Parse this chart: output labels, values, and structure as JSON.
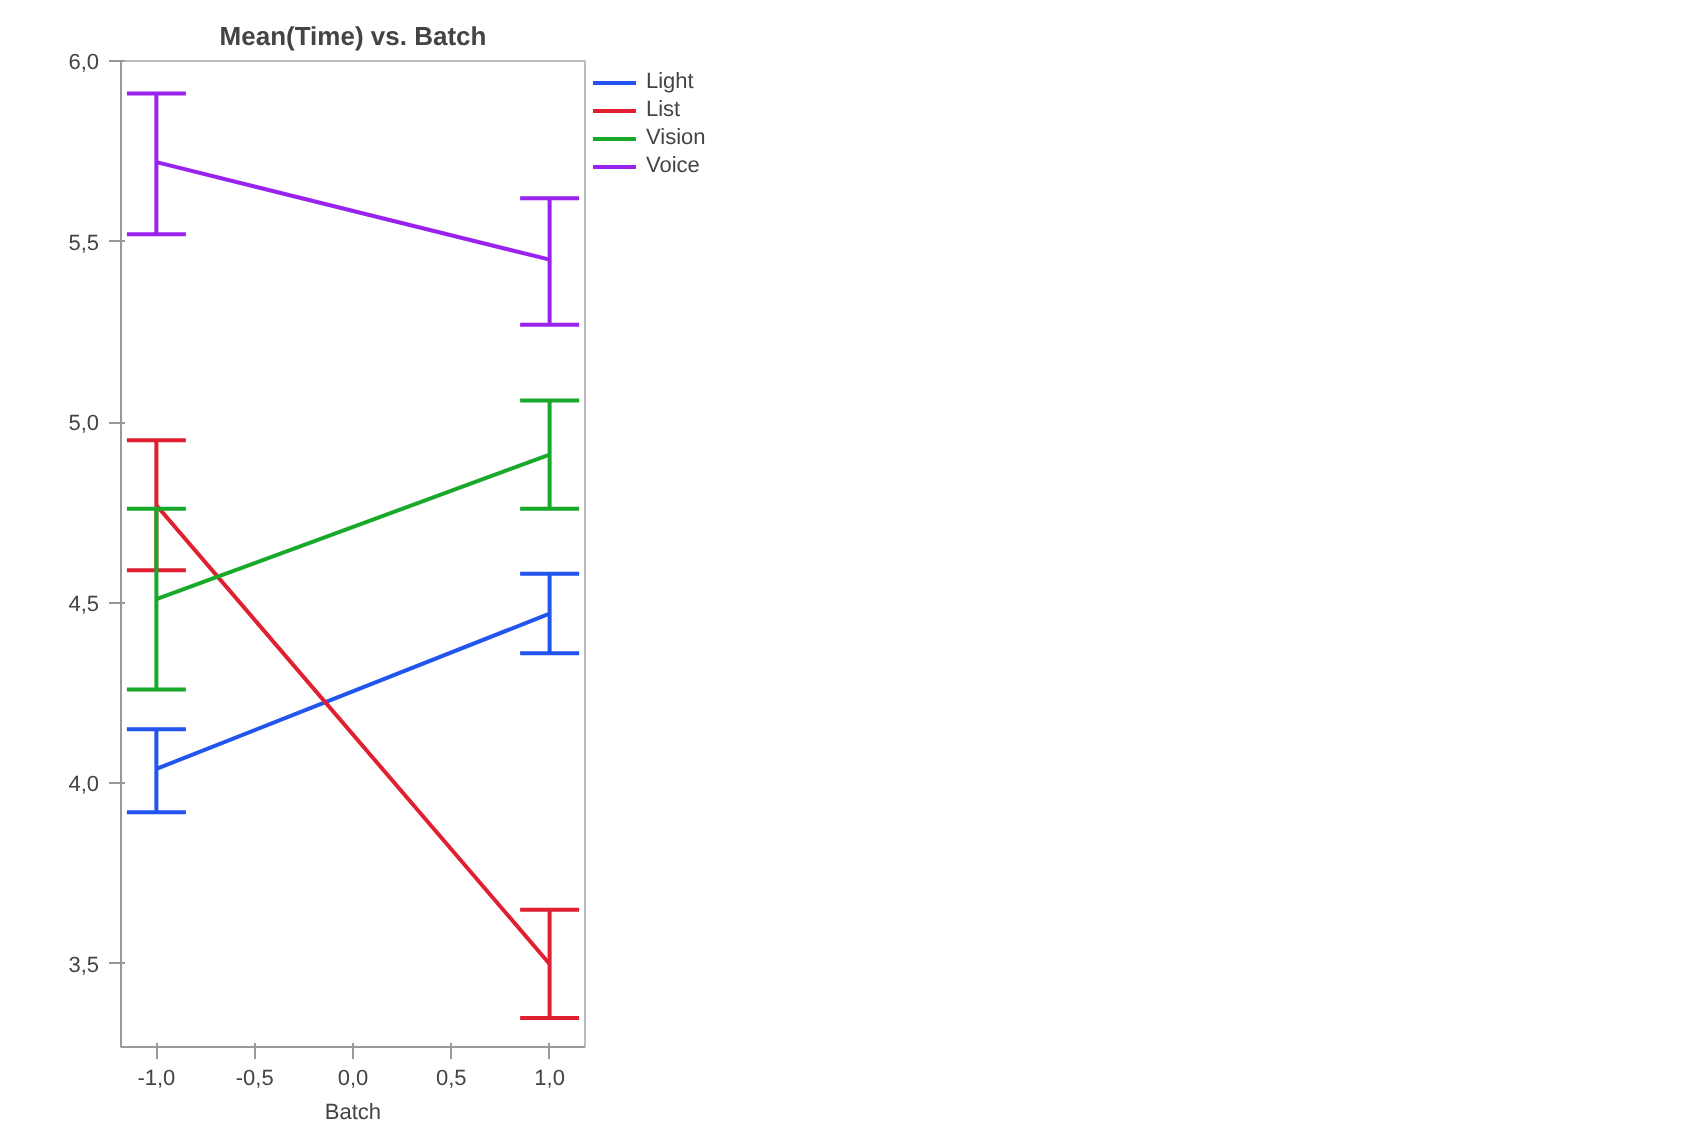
{
  "chart_data": {
    "type": "line",
    "title": "Mean(Time) vs. Batch",
    "xlabel": "Batch",
    "x": [
      -1.0,
      1.0
    ],
    "series": [
      {
        "name": "Light",
        "color": "#2255ee",
        "values": [
          4.04,
          4.47
        ],
        "errors": [
          [
            3.92,
            4.15
          ],
          [
            4.36,
            4.58
          ]
        ]
      },
      {
        "name": "List",
        "color": "#e02030",
        "values": [
          4.77,
          3.5
        ],
        "errors": [
          [
            4.59,
            4.95
          ],
          [
            3.35,
            3.65
          ]
        ]
      },
      {
        "name": "Vision",
        "color": "#18a82a",
        "values": [
          4.51,
          4.91
        ],
        "errors": [
          [
            4.26,
            4.76
          ],
          [
            4.76,
            5.06
          ]
        ]
      },
      {
        "name": "Voice",
        "color": "#9a22ee",
        "values": [
          5.72,
          5.45
        ],
        "errors": [
          [
            5.52,
            5.91
          ],
          [
            5.27,
            5.62
          ]
        ]
      }
    ],
    "xlim": [
      -1.18,
      1.18
    ],
    "xticks": [
      {
        "value": -1.0,
        "label": "-1,0"
      },
      {
        "value": -0.5,
        "label": "-0,5"
      },
      {
        "value": 0.0,
        "label": "0,0"
      },
      {
        "value": 0.5,
        "label": "0,5"
      },
      {
        "value": 1.0,
        "label": "1,0"
      }
    ],
    "ylim": [
      3.27,
      6.0
    ],
    "yticks": [
      {
        "value": 3.5,
        "label": "3,5"
      },
      {
        "value": 4.0,
        "label": "4,0"
      },
      {
        "value": 4.5,
        "label": "4,5"
      },
      {
        "value": 5.0,
        "label": "5,0"
      },
      {
        "value": 5.5,
        "label": "5,5"
      },
      {
        "value": 6.0,
        "label": "6,0"
      }
    ],
    "grid": false,
    "legend": "top right",
    "marker": "none",
    "line_style": "solid"
  }
}
